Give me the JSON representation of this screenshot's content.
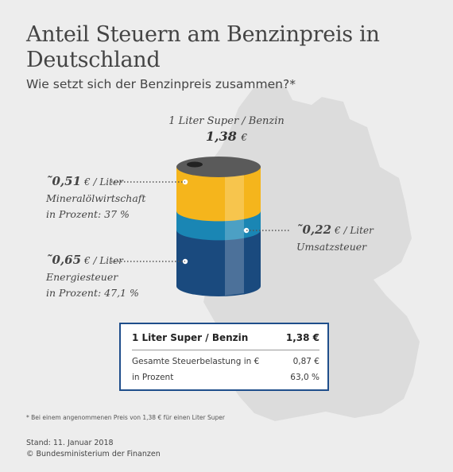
{
  "title": "Anteil Steuern am Benzinpreis in Deutschland",
  "subtitle": "Wie setzt sich der Benzinpreis zusammen?*",
  "barrel": {
    "label": "1 Liter Super / Benzin",
    "total": "1,38",
    "total_unit": "€"
  },
  "chart_data": {
    "type": "stacked-bar",
    "total": 1.38,
    "unit": "€ / Liter",
    "segments": [
      {
        "name": "Mineralölwirtschaft",
        "value": 0.51,
        "percent": 37,
        "color": "#f5b51c"
      },
      {
        "name": "Umsatzsteuer",
        "value": 0.22,
        "color": "#1a86b4"
      },
      {
        "name": "Energiesteuer",
        "value": 0.65,
        "percent": 47.1,
        "color": "#1a4a7e"
      }
    ]
  },
  "labels": {
    "mineral": {
      "value": "˜0,51",
      "unit": "€ / Liter",
      "name": "Mineralölwirtschaft",
      "pct": "in Prozent: 37 %"
    },
    "umsatz": {
      "value": "˜0,22",
      "unit": "€ / Liter",
      "name": "Umsatzsteuer"
    },
    "energie": {
      "value": "˜0,65",
      "unit": "€ / Liter",
      "name": "Energiesteuer",
      "pct": "in Prozent: 47,1 %"
    }
  },
  "summary": {
    "header_label": "1 Liter Super / Benzin",
    "header_value": "1,38 €",
    "rows": [
      {
        "label": "Gesamte Steuerbelastung in €",
        "value": "0,87 €"
      },
      {
        "label": "in Prozent",
        "value": "63,0 %"
      }
    ]
  },
  "footnote": "* Bei einem angenommenen Preis von 1,38 € für einen Liter Super",
  "stand": "Stand: 11. Januar 2018",
  "copyright": "© Bundesministerium der Finanzen",
  "colors": {
    "background": "#ededed",
    "map": "#dcdcdc",
    "lid": "#5a5a5a",
    "box_border": "#1f4e8b"
  }
}
